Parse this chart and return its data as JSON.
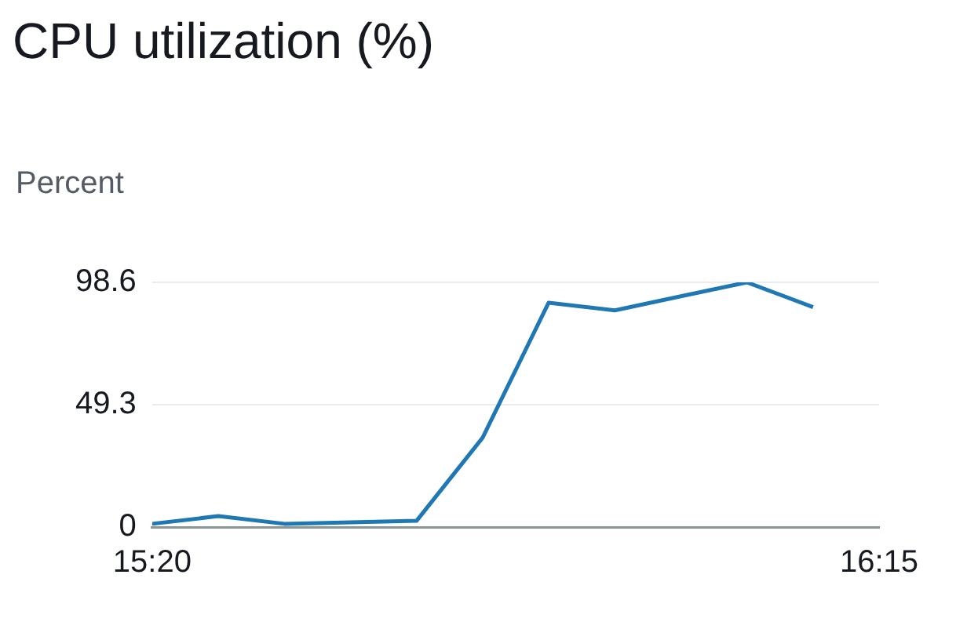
{
  "chart_data": {
    "type": "line",
    "title": "CPU utilization (%)",
    "ylabel": "Percent",
    "x": [
      15.3333,
      15.4167,
      15.5,
      15.5833,
      15.6667,
      15.75,
      15.8333,
      15.9167,
      16,
      16.0833,
      16.1667
    ],
    "series": [
      {
        "color": "#1f77b4",
        "values": [
          1.3,
          4.4,
          1.3,
          1.9,
          2.5,
          36,
          90.4,
          87.3,
          93,
          98.6,
          88.6
        ]
      }
    ],
    "xlim": [
      15.3333,
      16.25
    ],
    "xticks": [
      {
        "value": 15.3333,
        "label": "15:20"
      },
      {
        "value": 16.25,
        "label": "16:15"
      }
    ],
    "ylim": [
      0,
      98.6
    ],
    "yticks": [
      0,
      49.3,
      98.6
    ],
    "grid": "y",
    "legend": false,
    "marker": "none",
    "line_style": "solid"
  }
}
